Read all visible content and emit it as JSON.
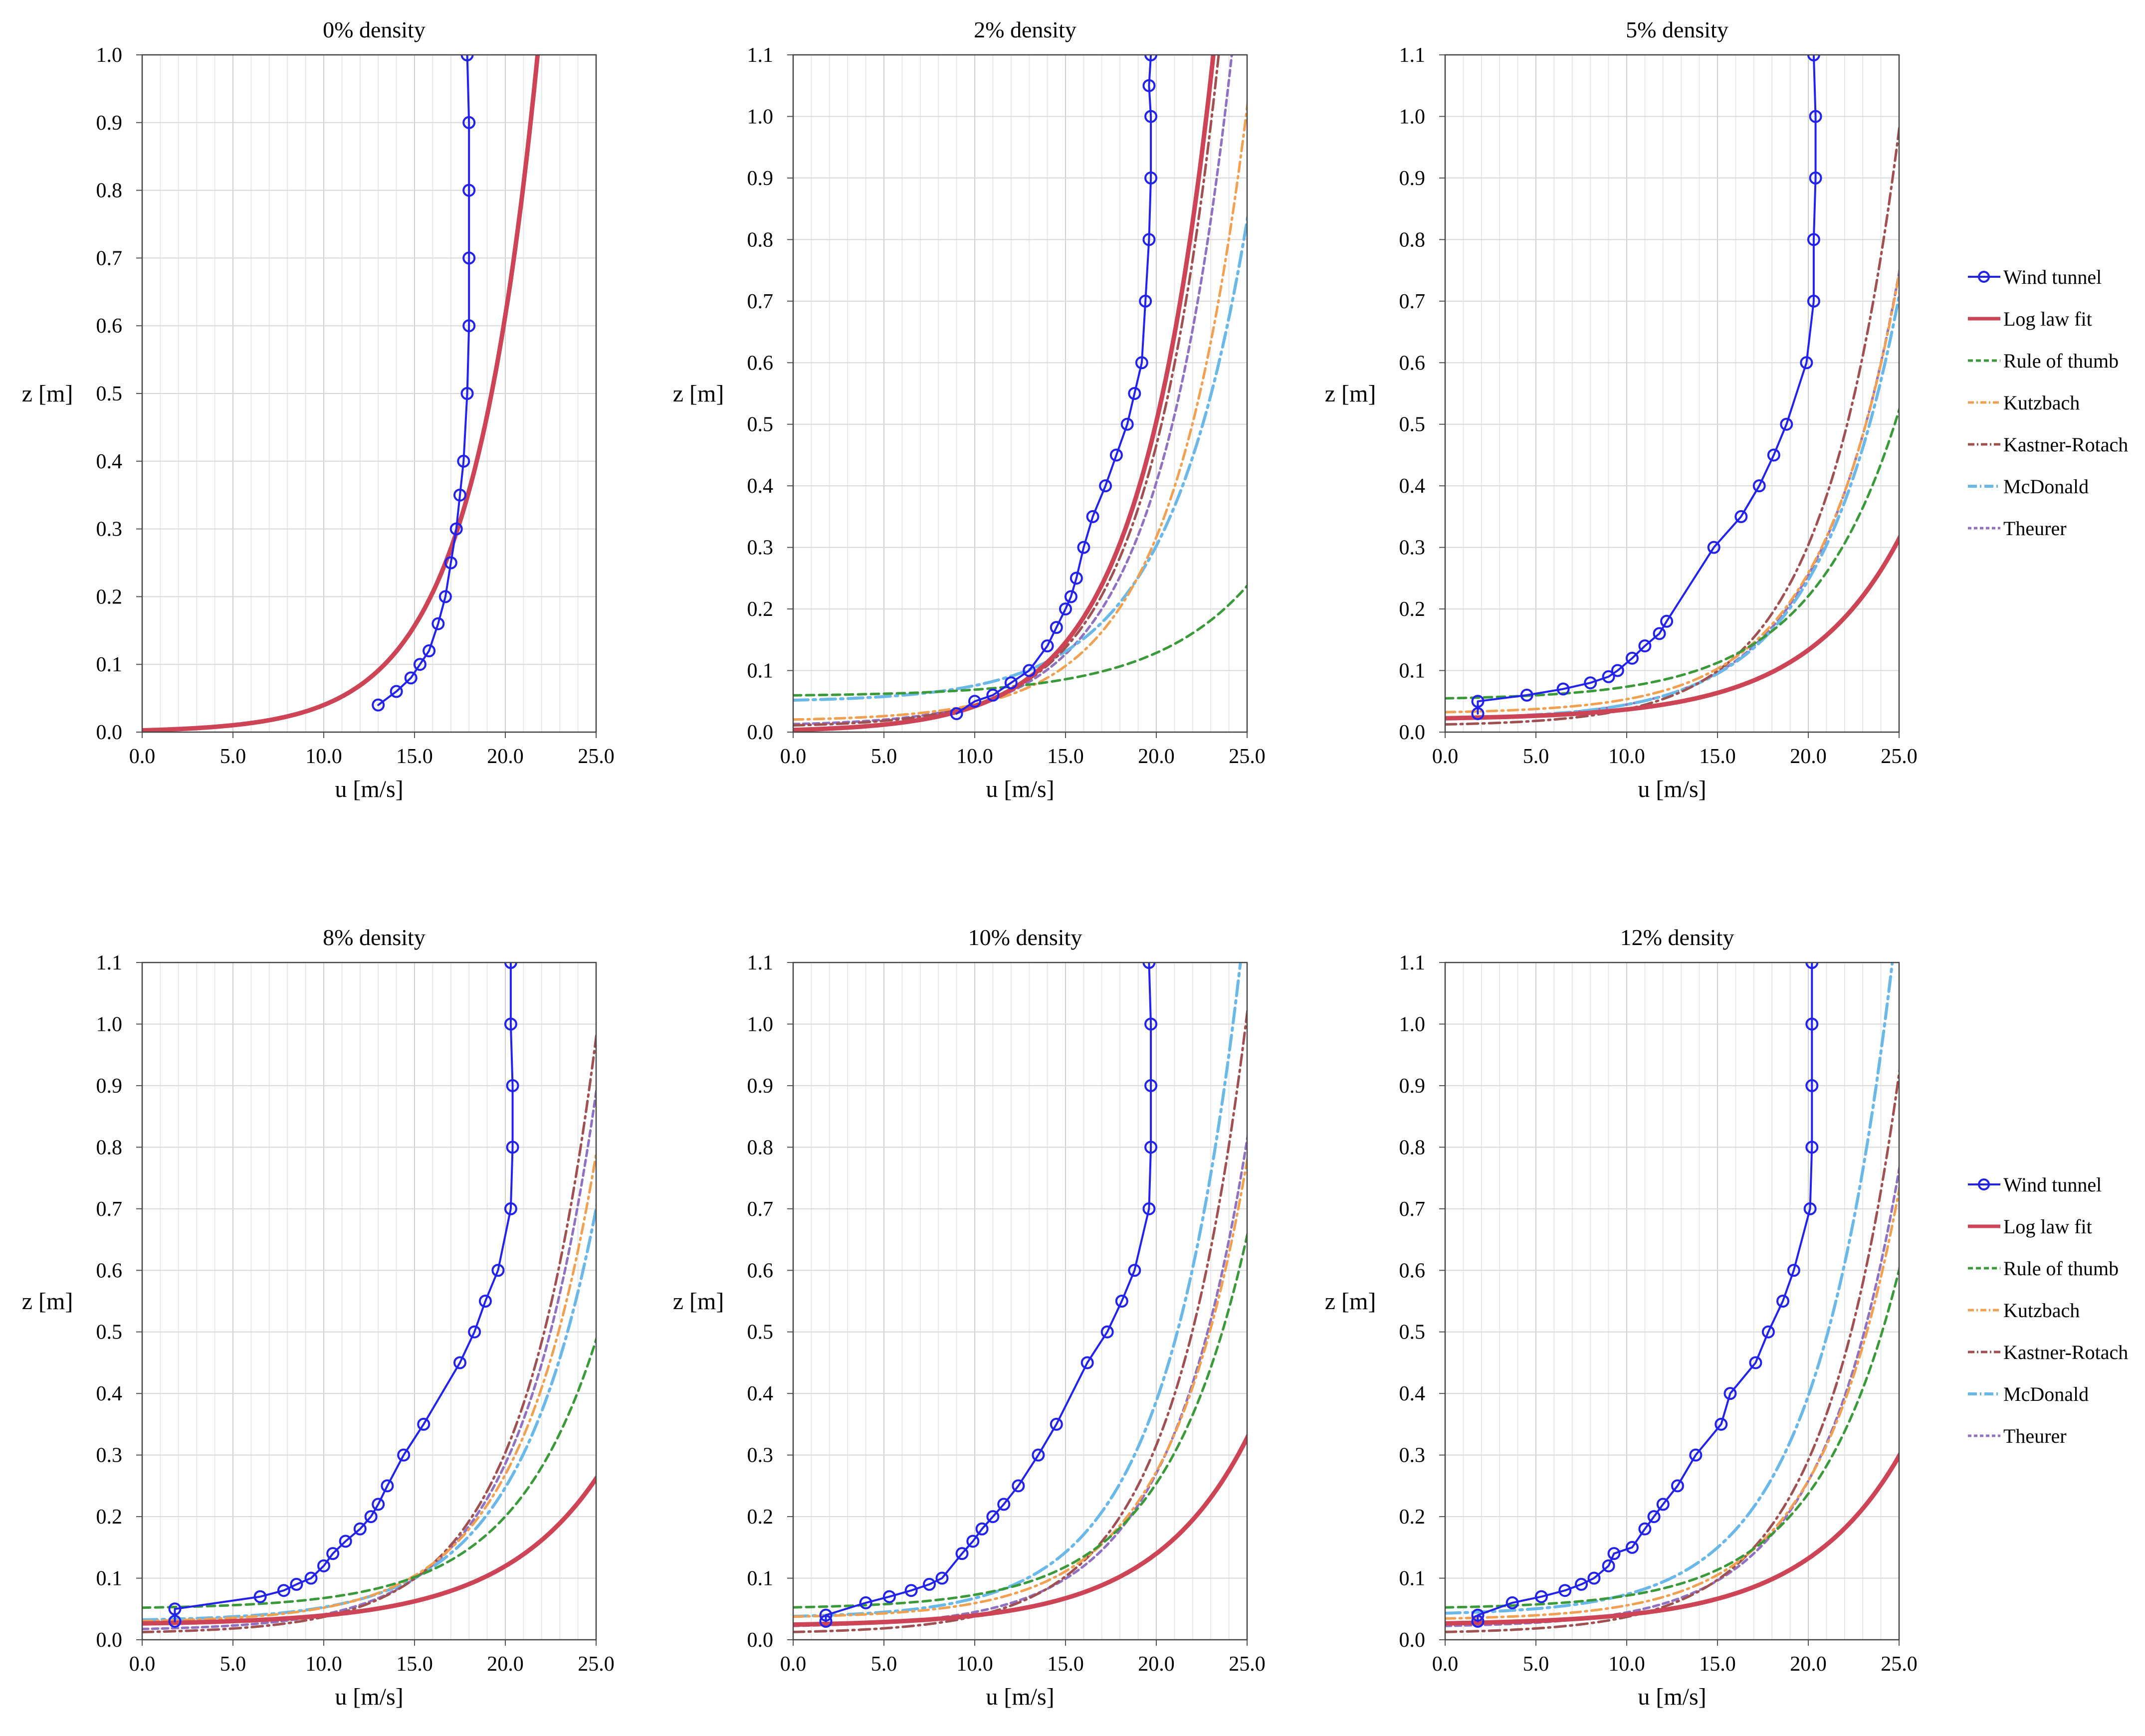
{
  "legend": [
    {
      "key": "wind",
      "label": "Wind tunnel",
      "color": "#2222ee",
      "dash": "",
      "width": 4,
      "marker": true
    },
    {
      "key": "log",
      "label": "Log law fit",
      "color": "#cc4455",
      "dash": "",
      "width": 9,
      "marker": false
    },
    {
      "key": "rule",
      "label": "Rule of thumb",
      "color": "#3a9a3a",
      "dash": "16,10",
      "width": 5,
      "marker": false
    },
    {
      "key": "kutz",
      "label": "Kutzbach",
      "color": "#f0a050",
      "dash": "20,9,4,9",
      "width": 5,
      "marker": false
    },
    {
      "key": "kast",
      "label": "Kastner-Rotach",
      "color": "#a05050",
      "dash": "22,9,4,9",
      "width": 5,
      "marker": false
    },
    {
      "key": "mcd",
      "label": "McDonald",
      "color": "#6ab8e8",
      "dash": "30,10,5,10",
      "width": 6,
      "marker": false
    },
    {
      "key": "theu",
      "label": "Theurer",
      "color": "#9070c0",
      "dash": "12,8",
      "width": 5,
      "marker": false
    }
  ],
  "chart_data": [
    {
      "type": "line",
      "title": "0% density",
      "xlabel": "u [m/s]",
      "ylabel": "z [m]",
      "xlim": [
        0,
        25
      ],
      "ylim": [
        0,
        1.0
      ],
      "xticks": [
        "0.0",
        "5.0",
        "10.0",
        "15.0",
        "20.0",
        "25.0"
      ],
      "yticks": [
        "0.0",
        "0.1",
        "0.2",
        "0.3",
        "0.4",
        "0.5",
        "0.6",
        "0.7",
        "0.8",
        "0.9",
        "1.0"
      ],
      "ytick_values": [
        0,
        0.1,
        0.2,
        0.3,
        0.4,
        0.5,
        0.6,
        0.7,
        0.8,
        0.9,
        1.0
      ],
      "grid": true,
      "series": [
        {
          "name": "Wind tunnel",
          "x": [
            13.0,
            14.0,
            14.8,
            15.3,
            15.8,
            16.3,
            16.7,
            17.0,
            17.3,
            17.5,
            17.7,
            17.9,
            18.0,
            18.0,
            18.0,
            18.0,
            17.9
          ],
          "y": [
            0.04,
            0.06,
            0.08,
            0.1,
            0.12,
            0.16,
            0.2,
            0.25,
            0.3,
            0.35,
            0.4,
            0.5,
            0.6,
            0.7,
            0.8,
            0.9,
            1.0
          ]
        },
        {
          "name": "Log law fit",
          "ustar": 1.5,
          "z0": 0.0026,
          "d": 0.0
        }
      ]
    },
    {
      "type": "line",
      "title": "2% density",
      "xlabel": "u [m/s]",
      "ylabel": "z [m]",
      "xlim": [
        0,
        25
      ],
      "ylim": [
        0,
        1.1
      ],
      "xticks": [
        "0.0",
        "5.0",
        "10.0",
        "15.0",
        "20.0",
        "25.0"
      ],
      "yticks": [
        "0.0",
        "0.1",
        "0.2",
        "0.3",
        "0.4",
        "0.5",
        "0.6",
        "0.7",
        "0.8",
        "0.9",
        "1.0",
        "1.1"
      ],
      "ytick_values": [
        0,
        0.1,
        0.2,
        0.3,
        0.4,
        0.5,
        0.6,
        0.7,
        0.8,
        0.9,
        1.0,
        1.1
      ],
      "grid": true,
      "series": [
        {
          "name": "Wind tunnel",
          "x": [
            9.0,
            10.0,
            11.0,
            12.0,
            13.0,
            14.0,
            14.5,
            15.0,
            15.3,
            15.6,
            16.0,
            16.5,
            17.2,
            17.8,
            18.4,
            18.8,
            19.2,
            19.4,
            19.6,
            19.7,
            19.7,
            19.6,
            19.7
          ],
          "y": [
            0.03,
            0.05,
            0.06,
            0.08,
            0.1,
            0.14,
            0.17,
            0.2,
            0.22,
            0.25,
            0.3,
            0.35,
            0.4,
            0.45,
            0.5,
            0.55,
            0.6,
            0.7,
            0.8,
            0.9,
            1.0,
            1.05,
            1.1
          ]
        },
        {
          "name": "Log law fit",
          "ustar": 1.65,
          "z0": 0.0035,
          "d": 0.0
        },
        {
          "name": "Rule of thumb",
          "ustar": 2.2,
          "z0": 0.0017,
          "d": 0.058
        },
        {
          "name": "Kutzbach",
          "ustar": 1.7,
          "z0": 0.0024,
          "d": 0.018
        },
        {
          "name": "Kastner-Rotach",
          "ustar": 1.62,
          "z0": 0.0029,
          "d": 0.008
        },
        {
          "name": "McDonald",
          "ustar": 1.82,
          "z0": 0.0028,
          "d": 0.049
        },
        {
          "name": "Theurer",
          "ustar": 1.68,
          "z0": 0.003,
          "d": 0.01
        }
      ]
    },
    {
      "type": "line",
      "title": "5% density",
      "xlabel": "u [m/s]",
      "ylabel": "z [m]",
      "xlim": [
        0,
        25
      ],
      "ylim": [
        0,
        1.1
      ],
      "xticks": [
        "0.0",
        "5.0",
        "10.0",
        "15.0",
        "20.0",
        "25.0"
      ],
      "yticks": [
        "0.0",
        "0.1",
        "0.2",
        "0.3",
        "0.4",
        "0.5",
        "0.6",
        "0.7",
        "0.8",
        "0.9",
        "1.0",
        "1.1"
      ],
      "ytick_values": [
        0,
        0.1,
        0.2,
        0.3,
        0.4,
        0.5,
        0.6,
        0.7,
        0.8,
        0.9,
        1.0,
        1.1
      ],
      "grid": true,
      "series": [
        {
          "name": "Wind tunnel",
          "x": [
            1.8,
            1.8,
            4.5,
            6.5,
            8.0,
            9.0,
            9.5,
            10.3,
            11.0,
            11.8,
            12.2,
            14.8,
            16.3,
            17.3,
            18.1,
            18.8,
            19.9,
            20.3,
            20.3,
            20.4,
            20.4,
            20.3
          ],
          "y": [
            0.03,
            0.05,
            0.06,
            0.07,
            0.08,
            0.09,
            0.1,
            0.12,
            0.14,
            0.16,
            0.18,
            0.3,
            0.35,
            0.4,
            0.45,
            0.5,
            0.6,
            0.7,
            0.8,
            0.9,
            1.0,
            1.1
          ]
        },
        {
          "name": "Log law fit",
          "ustar": 2.15,
          "z0": 0.0025,
          "d": 0.02
        },
        {
          "name": "Rule of thumb",
          "ustar": 2.0,
          "z0": 0.0028,
          "d": 0.052
        },
        {
          "name": "Kutzbach",
          "ustar": 1.8,
          "z0": 0.0024,
          "d": 0.03
        },
        {
          "name": "Kastner-Rotach",
          "ustar": 1.72,
          "z0": 0.0025,
          "d": 0.01
        },
        {
          "name": "McDonald",
          "ustar": 1.85,
          "z0": 0.0027,
          "d": 0.02
        },
        {
          "name": "Theurer",
          "ustar": 1.82,
          "z0": 0.0026,
          "d": 0.02
        }
      ]
    },
    {
      "type": "line",
      "title": "8% density",
      "xlabel": "u [m/s]",
      "ylabel": "z [m]",
      "xlim": [
        0,
        25
      ],
      "ylim": [
        0,
        1.1
      ],
      "xticks": [
        "0.0",
        "5.0",
        "10.0",
        "15.0",
        "20.0",
        "25.0"
      ],
      "yticks": [
        "0.0",
        "0.1",
        "0.2",
        "0.3",
        "0.4",
        "0.5",
        "0.6",
        "0.7",
        "0.8",
        "0.9",
        "1.0",
        "1.1"
      ],
      "ytick_values": [
        0,
        0.1,
        0.2,
        0.3,
        0.4,
        0.5,
        0.6,
        0.7,
        0.8,
        0.9,
        1.0,
        1.1
      ],
      "grid": true,
      "series": [
        {
          "name": "Wind tunnel",
          "x": [
            1.8,
            1.8,
            6.5,
            7.8,
            8.5,
            9.3,
            10.0,
            10.5,
            11.2,
            12.0,
            12.6,
            13.0,
            13.5,
            14.4,
            15.5,
            17.5,
            18.3,
            18.9,
            19.6,
            20.3,
            20.4,
            20.4,
            20.3,
            20.3
          ],
          "y": [
            0.03,
            0.05,
            0.07,
            0.08,
            0.09,
            0.1,
            0.12,
            0.14,
            0.16,
            0.18,
            0.2,
            0.22,
            0.25,
            0.3,
            0.35,
            0.45,
            0.5,
            0.55,
            0.6,
            0.7,
            0.8,
            0.9,
            1.0,
            1.1
          ]
        },
        {
          "name": "Log law fit",
          "ustar": 2.25,
          "z0": 0.0025,
          "d": 0.024
        },
        {
          "name": "Rule of thumb",
          "ustar": 1.92,
          "z0": 0.0021,
          "d": 0.05
        },
        {
          "name": "Kutzbach",
          "ustar": 1.78,
          "z0": 0.0024,
          "d": 0.028
        },
        {
          "name": "Kastner-Rotach",
          "ustar": 1.72,
          "z0": 0.0025,
          "d": 0.01
        },
        {
          "name": "McDonald",
          "ustar": 1.82,
          "z0": 0.0024,
          "d": 0.03
        },
        {
          "name": "Theurer",
          "ustar": 1.75,
          "z0": 0.0025,
          "d": 0.015
        }
      ]
    },
    {
      "type": "line",
      "title": "10% density",
      "xlabel": "u [m/s]",
      "ylabel": "z [m]",
      "xlim": [
        0,
        25
      ],
      "ylim": [
        0,
        1.1
      ],
      "xticks": [
        "0.0",
        "5.0",
        "10.0",
        "15.0",
        "20.0",
        "25.0"
      ],
      "yticks": [
        "0.0",
        "0.1",
        "0.2",
        "0.3",
        "0.4",
        "0.5",
        "0.6",
        "0.7",
        "0.8",
        "0.9",
        "1.0",
        "1.1"
      ],
      "ytick_values": [
        0,
        0.1,
        0.2,
        0.3,
        0.4,
        0.5,
        0.6,
        0.7,
        0.8,
        0.9,
        1.0,
        1.1
      ],
      "grid": true,
      "series": [
        {
          "name": "Wind tunnel",
          "x": [
            1.8,
            1.8,
            4.0,
            5.3,
            6.5,
            7.5,
            8.2,
            9.3,
            9.9,
            10.4,
            11.0,
            11.6,
            12.4,
            13.5,
            14.5,
            16.2,
            17.3,
            18.1,
            18.8,
            19.6,
            19.7,
            19.7,
            19.7,
            19.6
          ],
          "y": [
            0.03,
            0.04,
            0.06,
            0.07,
            0.08,
            0.09,
            0.1,
            0.14,
            0.16,
            0.18,
            0.2,
            0.22,
            0.25,
            0.3,
            0.35,
            0.45,
            0.5,
            0.55,
            0.6,
            0.7,
            0.8,
            0.9,
            1.0,
            1.1
          ]
        },
        {
          "name": "Log law fit",
          "ustar": 2.15,
          "z0": 0.0026,
          "d": 0.022
        },
        {
          "name": "Rule of thumb",
          "ustar": 1.88,
          "z0": 0.0026,
          "d": 0.05
        },
        {
          "name": "Kutzbach",
          "ustar": 1.8,
          "z0": 0.0025,
          "d": 0.035
        },
        {
          "name": "Kastner-Rotach",
          "ustar": 1.72,
          "z0": 0.0026,
          "d": 0.01
        },
        {
          "name": "McDonald",
          "ustar": 1.72,
          "z0": 0.003,
          "d": 0.035
        },
        {
          "name": "Theurer",
          "ustar": 1.78,
          "z0": 0.0025,
          "d": 0.02
        }
      ]
    },
    {
      "type": "line",
      "title": "12% density",
      "xlabel": "u [m/s]",
      "ylabel": "z [m]",
      "xlim": [
        0,
        25
      ],
      "ylim": [
        0,
        1.1
      ],
      "xticks": [
        "0.0",
        "5.0",
        "10.0",
        "15.0",
        "20.0",
        "25.0"
      ],
      "yticks": [
        "0.0",
        "0.1",
        "0.2",
        "0.3",
        "0.4",
        "0.5",
        "0.6",
        "0.7",
        "0.8",
        "0.9",
        "1.0",
        "1.1"
      ],
      "ytick_values": [
        0,
        0.1,
        0.2,
        0.3,
        0.4,
        0.5,
        0.6,
        0.7,
        0.8,
        0.9,
        1.0,
        1.1
      ],
      "grid": true,
      "series": [
        {
          "name": "Wind tunnel",
          "x": [
            1.8,
            1.8,
            3.7,
            5.3,
            6.6,
            7.5,
            8.2,
            9.0,
            9.3,
            10.3,
            11.0,
            11.5,
            12.0,
            12.8,
            13.8,
            15.2,
            15.7,
            17.1,
            17.8,
            18.6,
            19.2,
            20.1,
            20.2,
            20.2,
            20.2,
            20.2
          ],
          "y": [
            0.03,
            0.04,
            0.06,
            0.07,
            0.08,
            0.09,
            0.1,
            0.12,
            0.14,
            0.15,
            0.18,
            0.2,
            0.22,
            0.25,
            0.3,
            0.35,
            0.4,
            0.45,
            0.5,
            0.55,
            0.6,
            0.7,
            0.8,
            0.9,
            1.0,
            1.1
          ]
        },
        {
          "name": "Log law fit",
          "ustar": 2.2,
          "z0": 0.0026,
          "d": 0.024
        },
        {
          "name": "Rule of thumb",
          "ustar": 1.9,
          "z0": 0.0025,
          "d": 0.05
        },
        {
          "name": "Kutzbach",
          "ustar": 1.82,
          "z0": 0.0025,
          "d": 0.032
        },
        {
          "name": "Kastner-Rotach",
          "ustar": 1.75,
          "z0": 0.0026,
          "d": 0.01
        },
        {
          "name": "McDonald",
          "ustar": 1.74,
          "z0": 0.0032,
          "d": 0.04
        },
        {
          "name": "Theurer",
          "ustar": 1.8,
          "z0": 0.0025,
          "d": 0.02
        }
      ]
    }
  ]
}
